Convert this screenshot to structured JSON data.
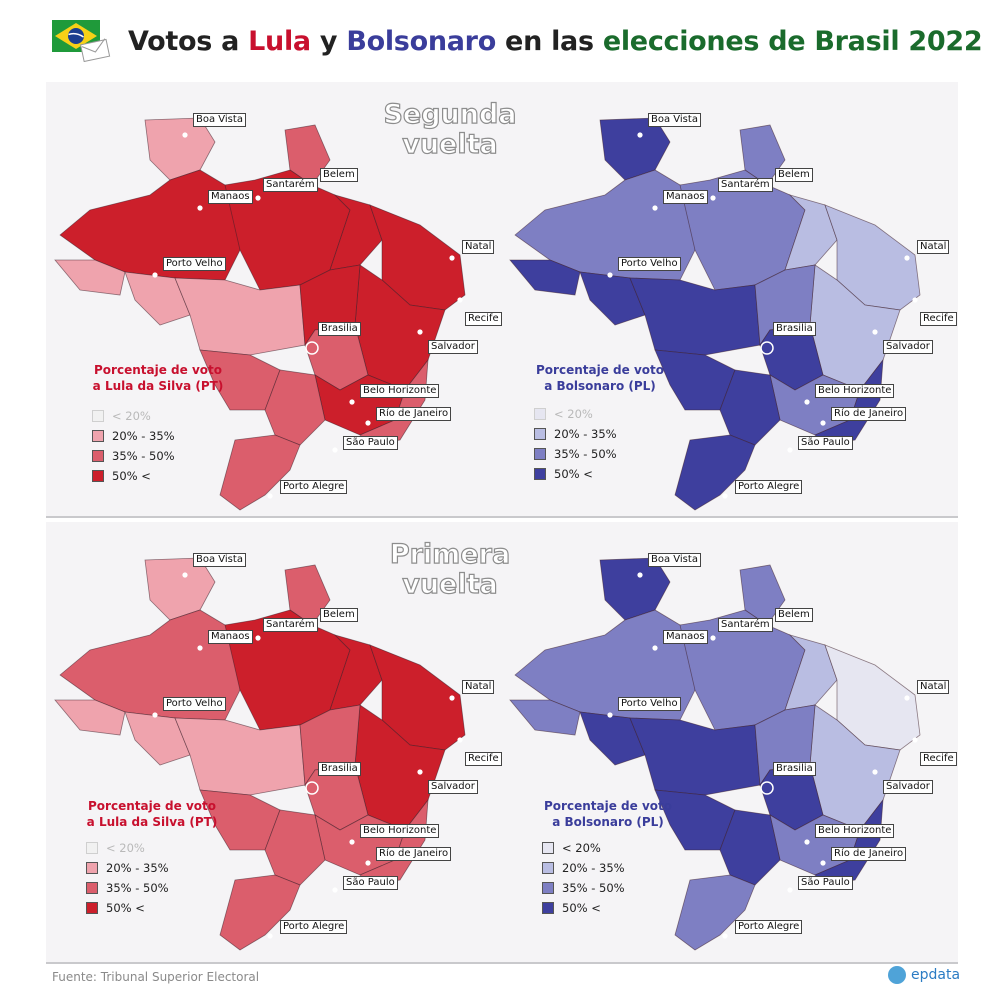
{
  "title": {
    "part1": "Votos a ",
    "lula": "Lula",
    "part2": " y ",
    "bolsonaro": "Bolsonaro",
    "part3": " en las ",
    "elecciones": "elecciones de Brasil 2022"
  },
  "icons": {
    "flag": "brazil-flag-icon",
    "envelope": "ballot-envelope-icon",
    "brand": "epdata-logo-icon"
  },
  "colors": {
    "lula": [
      "#f1f1f1",
      "#efa3ad",
      "#db5e6c",
      "#cc1f2b"
    ],
    "bolsonaro": [
      "#e6e6f1",
      "#b9bde2",
      "#7e7fc3",
      "#3e3f9e"
    ],
    "lula_title": "#c8102e",
    "bolsonaro_title": "#3a3d9b",
    "elecciones_title": "#1a6b2c"
  },
  "rounds": [
    {
      "id": "segunda",
      "title_line1": "Segunda",
      "title_line2": "vuelta",
      "lula_legend": {
        "title1": "Porcentaje de voto",
        "title2": "a Lula da Silva (PT)"
      },
      "bolsonaro_legend": {
        "title1": "Porcentaje de voto",
        "title2": "a Bolsonaro (PL)"
      },
      "lula_muted_first": true,
      "bolso_muted_first": true
    },
    {
      "id": "primera",
      "title_line1": "Primera",
      "title_line2": "vuelta",
      "lula_legend": {
        "title1": "Porcentaje de voto",
        "title2": "a Lula da Silva (PT)"
      },
      "bolsonaro_legend": {
        "title1": "Porcentaje de voto",
        "title2": "a Bolsonaro (PL)"
      },
      "lula_muted_first": true,
      "bolso_muted_first": false
    }
  ],
  "legend_ranges": [
    "< 20%",
    "20% - 35%",
    "35% - 50%",
    "50% <"
  ],
  "cities": [
    "Boa Vista",
    "Manaos",
    "Santarém",
    "Belem",
    "Natal",
    "Porto Velho",
    "Recife",
    "Brasilia",
    "Salvador",
    "Belo Horizonte",
    "Río de Janeiro",
    "São Paulo",
    "Porto Alegre"
  ],
  "footer": {
    "source": "Fuente: Tribunal Superior Electoral",
    "brand": "epdata"
  }
}
